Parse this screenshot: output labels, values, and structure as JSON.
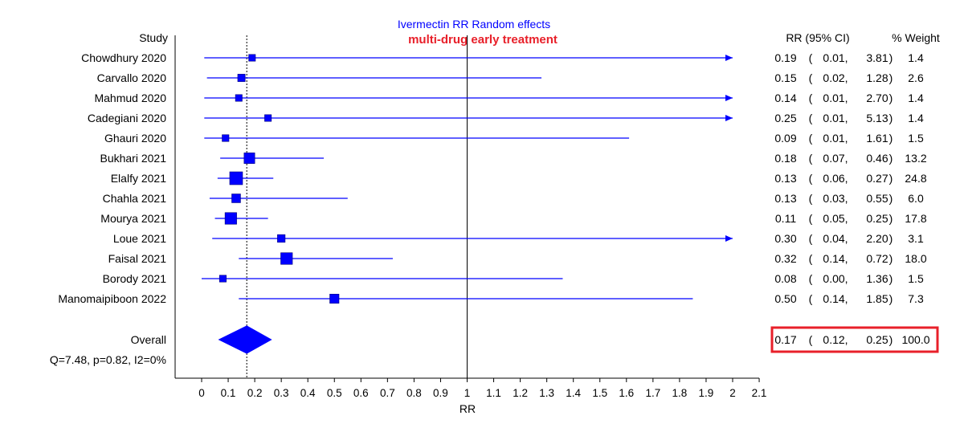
{
  "chart_data": {
    "type": "forest",
    "title": "Ivermectin RR Random effects",
    "subtitle": "multi-drug early treatment",
    "xlabel": "RR",
    "xlim": [
      0,
      2.1
    ],
    "xticks": [
      0,
      0.1,
      0.2,
      0.3,
      0.4,
      0.5,
      0.6,
      0.7,
      0.8,
      0.9,
      1,
      1.1,
      1.2,
      1.3,
      1.4,
      1.5,
      1.6,
      1.7,
      1.8,
      1.9,
      2,
      2.1
    ],
    "null_line": 1,
    "col_study_header": "Study",
    "col_rr_header": "RR (95% CI)",
    "col_weight_header": "% Weight",
    "colors": {
      "marks": "#0000ff",
      "subtitle": "#e8202a",
      "highlight": "#e8202a"
    },
    "studies": [
      {
        "name": "Chowdhury 2020",
        "rr": 0.19,
        "lo": 0.01,
        "hi": 3.81,
        "rr_text": "0.19",
        "lo_text": "0.01",
        "hi_text": "3.81",
        "weight_text": "1.4",
        "weight": 1.4
      },
      {
        "name": "Carvallo 2020",
        "rr": 0.15,
        "lo": 0.02,
        "hi": 1.28,
        "rr_text": "0.15",
        "lo_text": "0.02",
        "hi_text": "1.28",
        "weight_text": "2.6",
        "weight": 2.6
      },
      {
        "name": "Mahmud 2020",
        "rr": 0.14,
        "lo": 0.01,
        "hi": 2.7,
        "rr_text": "0.14",
        "lo_text": "0.01",
        "hi_text": "2.70",
        "weight_text": "1.4",
        "weight": 1.4
      },
      {
        "name": "Cadegiani 2020",
        "rr": 0.25,
        "lo": 0.01,
        "hi": 5.13,
        "rr_text": "0.25",
        "lo_text": "0.01",
        "hi_text": "5.13",
        "weight_text": "1.4",
        "weight": 1.4
      },
      {
        "name": "Ghauri 2020",
        "rr": 0.09,
        "lo": 0.01,
        "hi": 1.61,
        "rr_text": "0.09",
        "lo_text": "0.01",
        "hi_text": "1.61",
        "weight_text": "1.5",
        "weight": 1.5
      },
      {
        "name": "Bukhari 2021",
        "rr": 0.18,
        "lo": 0.07,
        "hi": 0.46,
        "rr_text": "0.18",
        "lo_text": "0.07",
        "hi_text": "0.46",
        "weight_text": "13.2",
        "weight": 13.2
      },
      {
        "name": "Elalfy 2021",
        "rr": 0.13,
        "lo": 0.06,
        "hi": 0.27,
        "rr_text": "0.13",
        "lo_text": "0.06",
        "hi_text": "0.27",
        "weight_text": "24.8",
        "weight": 24.8
      },
      {
        "name": "Chahla 2021",
        "rr": 0.13,
        "lo": 0.03,
        "hi": 0.55,
        "rr_text": "0.13",
        "lo_text": "0.03",
        "hi_text": "0.55",
        "weight_text": "6.0",
        "weight": 6.0
      },
      {
        "name": "Mourya 2021",
        "rr": 0.11,
        "lo": 0.05,
        "hi": 0.25,
        "rr_text": "0.11",
        "lo_text": "0.05",
        "hi_text": "0.25",
        "weight_text": "17.8",
        "weight": 17.8
      },
      {
        "name": "Loue 2021",
        "rr": 0.3,
        "lo": 0.04,
        "hi": 2.2,
        "rr_text": "0.30",
        "lo_text": "0.04",
        "hi_text": "2.20",
        "weight_text": "3.1",
        "weight": 3.1
      },
      {
        "name": "Faisal 2021",
        "rr": 0.32,
        "lo": 0.14,
        "hi": 0.72,
        "rr_text": "0.32",
        "lo_text": "0.14",
        "hi_text": "0.72",
        "weight_text": "18.0",
        "weight": 18.0
      },
      {
        "name": "Borody 2021",
        "rr": 0.08,
        "lo": 0.0,
        "hi": 1.36,
        "rr_text": "0.08",
        "lo_text": "0.00",
        "hi_text": "1.36",
        "weight_text": "1.5",
        "weight": 1.5
      },
      {
        "name": "Manomaipiboon 2022",
        "rr": 0.5,
        "lo": 0.14,
        "hi": 1.85,
        "rr_text": "0.50",
        "lo_text": "0.14",
        "hi_text": "1.85",
        "weight_text": "7.3",
        "weight": 7.3
      }
    ],
    "overall": {
      "name": "Overall",
      "rr": 0.17,
      "lo": 0.12,
      "hi": 0.25,
      "rr_text": "0.17",
      "lo_text": "0.12",
      "hi_text": "0.25",
      "weight_text": "100.0",
      "highlighted": true
    },
    "heterogeneity": "Q=7.48, p=0.82, I2=0%"
  }
}
